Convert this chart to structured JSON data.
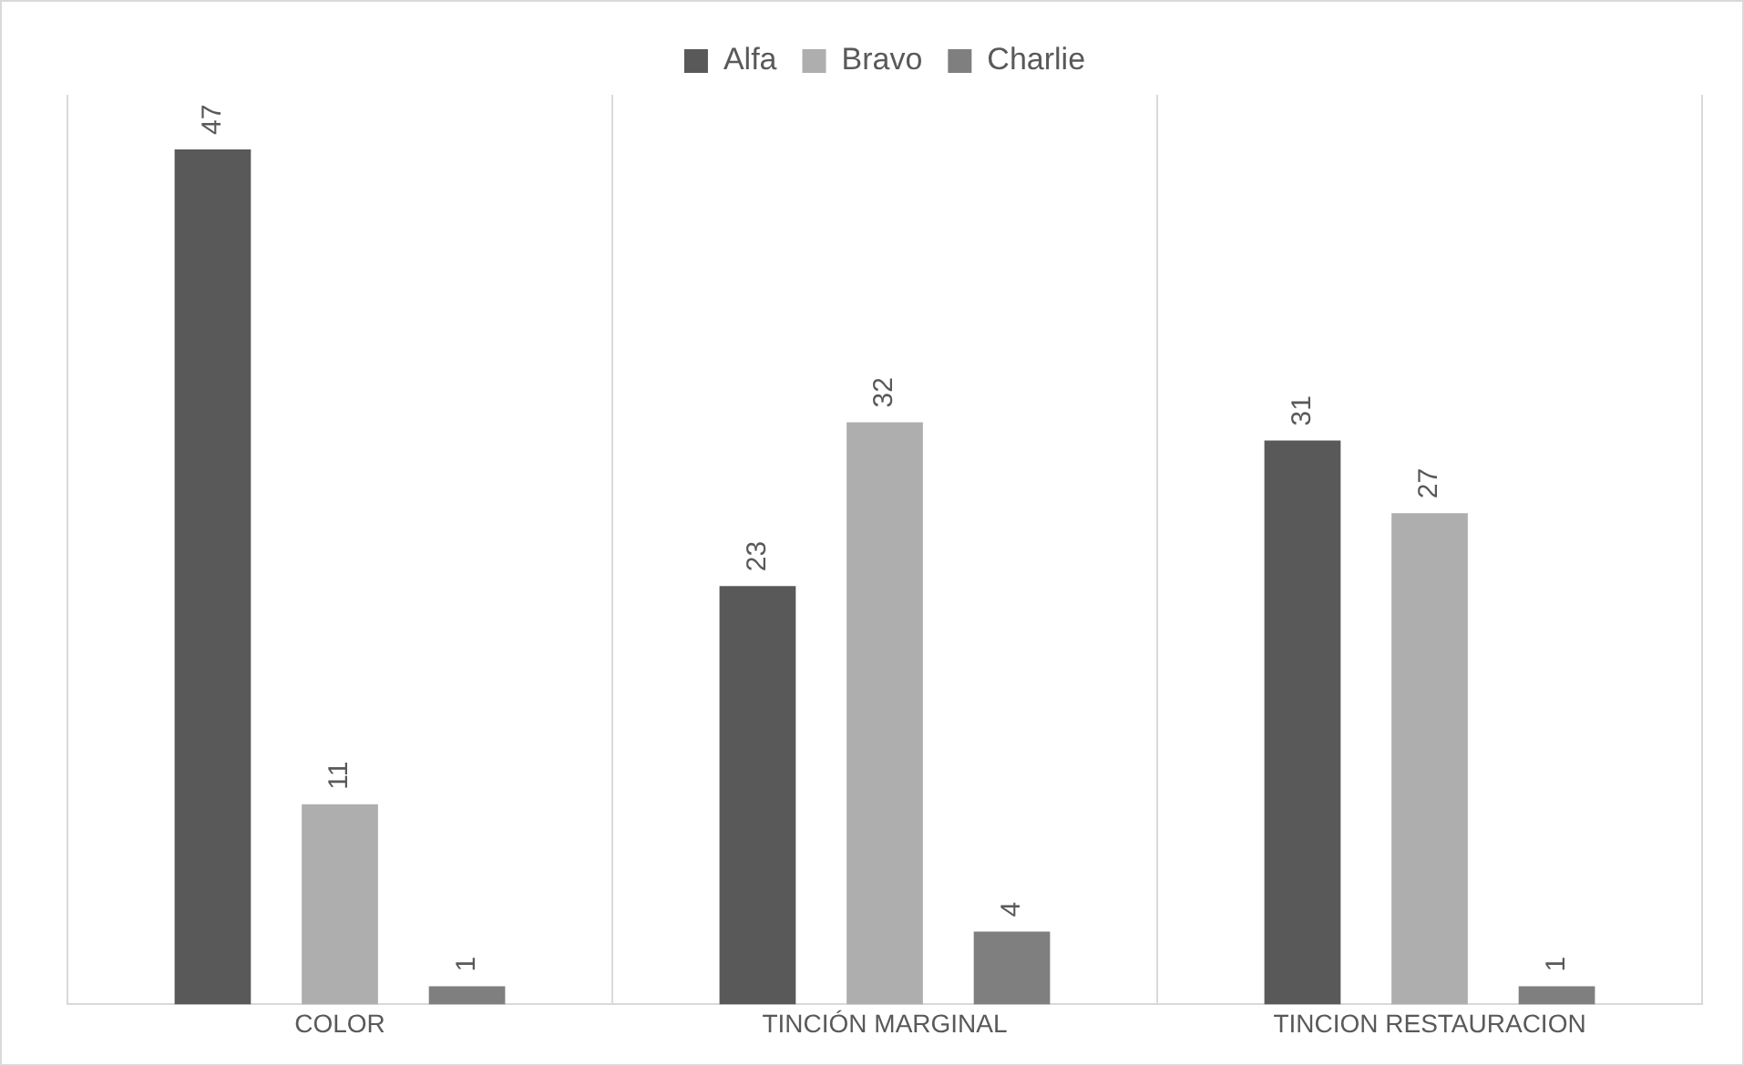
{
  "chart_data": {
    "type": "bar",
    "categories": [
      "COLOR",
      "TINCIÓN MARGINAL",
      "TINCION RESTAURACION"
    ],
    "series": [
      {
        "name": "Alfa",
        "color": "#595959",
        "values": [
          47,
          23,
          31
        ]
      },
      {
        "name": "Bravo",
        "color": "#aeaeae",
        "values": [
          11,
          32,
          27
        ]
      },
      {
        "name": "Charlie",
        "color": "#7f7f7f",
        "values": [
          1,
          4,
          1
        ]
      }
    ],
    "data_labels": true,
    "grid": "x",
    "legend": "top",
    "tick_labels": "x"
  }
}
